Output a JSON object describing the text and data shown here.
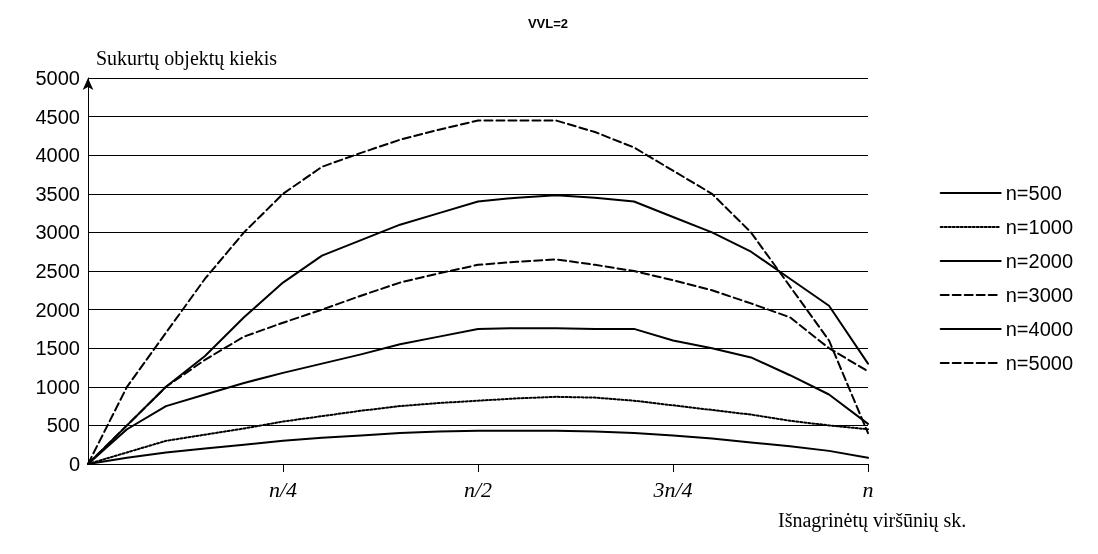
{
  "chart_data": {
    "type": "line",
    "title": "VVL=2",
    "xlabel": "Išnagrinėtų viršūnių sk.",
    "ylabel": "Sukurtų objektų kiekis",
    "categories": [
      null,
      null,
      null,
      null,
      null,
      "n/4",
      null,
      null,
      null,
      null,
      "n/2",
      null,
      null,
      null,
      null,
      "3n/4",
      null,
      null,
      null,
      null,
      "n"
    ],
    "ylim": [
      0,
      5000
    ],
    "yticks": [
      0,
      500,
      1000,
      1500,
      2000,
      2500,
      3000,
      3500,
      4000,
      4500,
      5000
    ],
    "grid": "y",
    "legend": "right",
    "marker": "none",
    "series": [
      {
        "name": "n=500",
        "color": "#000000",
        "line_style": "solid",
        "values": [
          0,
          80,
          150,
          200,
          250,
          300,
          340,
          370,
          400,
          420,
          430,
          430,
          430,
          420,
          400,
          370,
          330,
          280,
          230,
          170,
          80
        ]
      },
      {
        "name": "n=1000",
        "color": "#000000",
        "line_style": "dotted",
        "values": [
          0,
          150,
          300,
          380,
          460,
          550,
          620,
          690,
          750,
          790,
          820,
          850,
          870,
          860,
          820,
          760,
          700,
          640,
          560,
          500,
          450
        ]
      },
      {
        "name": "n=2000",
        "color": "#000000",
        "line_style": "solid",
        "values": [
          0,
          450,
          750,
          900,
          1050,
          1180,
          1300,
          1420,
          1550,
          1650,
          1750,
          1760,
          1760,
          1750,
          1750,
          1600,
          1500,
          1380,
          1150,
          900,
          520
        ]
      },
      {
        "name": "n=3000",
        "color": "#000000",
        "line_style": "dashed",
        "values": [
          0,
          500,
          1000,
          1350,
          1650,
          1830,
          2000,
          2180,
          2350,
          2470,
          2580,
          2620,
          2650,
          2580,
          2500,
          2380,
          2250,
          2080,
          1900,
          1500,
          1200
        ]
      },
      {
        "name": "n=4000",
        "color": "#000000",
        "line_style": "solid",
        "values": [
          0,
          500,
          1000,
          1400,
          1900,
          2350,
          2700,
          2900,
          3100,
          3250,
          3400,
          3450,
          3480,
          3450,
          3400,
          3200,
          3000,
          2750,
          2400,
          2050,
          1300
        ]
      },
      {
        "name": "n=5000",
        "color": "#000000",
        "line_style": "dashed",
        "values": [
          0,
          1000,
          1700,
          2400,
          3000,
          3500,
          3850,
          4030,
          4200,
          4330,
          4450,
          4450,
          4450,
          4300,
          4100,
          3800,
          3500,
          3000,
          2300,
          1600,
          400
        ]
      }
    ]
  }
}
